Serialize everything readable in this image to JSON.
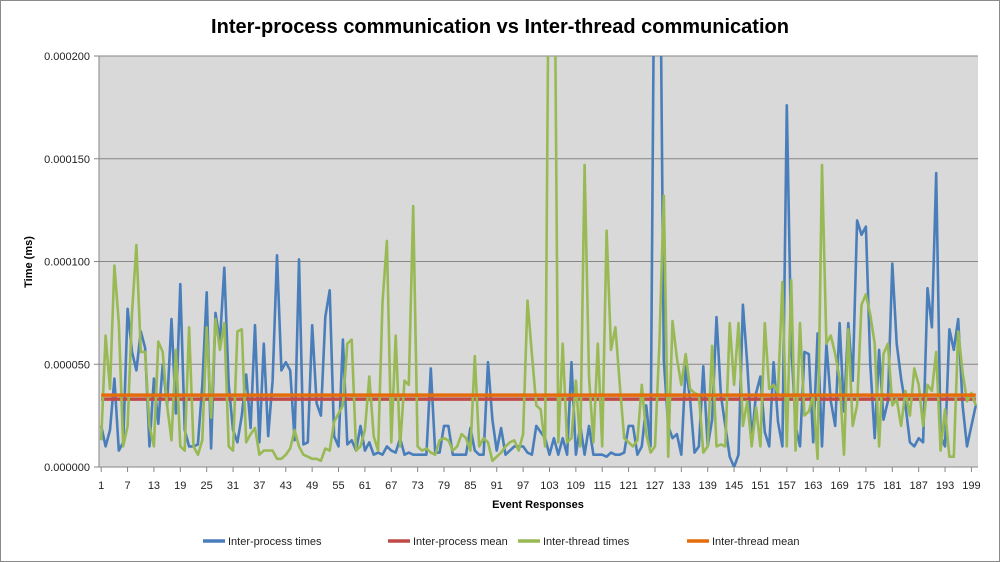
{
  "chart_data": {
    "type": "line",
    "title": "Inter-process communication vs Inter-thread communication",
    "xlabel": "Event Responses",
    "ylabel": "Time (ms)",
    "ylim": [
      0,
      0.0002
    ],
    "yticks": [
      "0.000000",
      "0.000050",
      "0.000100",
      "0.000150",
      "0.000200"
    ],
    "ytick_values": [
      0,
      5e-05,
      0.0001,
      0.00015,
      0.0002
    ],
    "xticks": [
      "1",
      "7",
      "13",
      "19",
      "25",
      "31",
      "37",
      "43",
      "49",
      "55",
      "61",
      "67",
      "73",
      "79",
      "85",
      "91",
      "97",
      "103",
      "109",
      "115",
      "121",
      "127",
      "133",
      "139",
      "145",
      "151",
      "157",
      "163",
      "169",
      "175",
      "181",
      "187",
      "193",
      "199"
    ],
    "x_count": 200,
    "grid": true,
    "legend_position": "bottom",
    "series": [
      {
        "name": "Inter-process times",
        "color": "#4a7ebb",
        "values": [
          2e-05,
          1e-05,
          1.8e-05,
          4.3e-05,
          8e-06,
          1.2e-05,
          7.7e-05,
          5.6e-05,
          4.7e-05,
          6.6e-05,
          5.8e-05,
          1e-05,
          4.3e-05,
          2.1e-05,
          5e-05,
          3e-05,
          7.2e-05,
          2.6e-05,
          8.9e-05,
          1.8e-05,
          1e-05,
          1e-05,
          1.1e-05,
          4e-05,
          8.5e-05,
          9e-06,
          7.5e-05,
          6.1e-05,
          9.7e-05,
          4e-05,
          1.8e-05,
          1.2e-05,
          2.5e-05,
          4.5e-05,
          1.9e-05,
          6.9e-05,
          1.2e-05,
          6e-05,
          1.5e-05,
          4.2e-05,
          0.000103,
          4.7e-05,
          5.1e-05,
          4.7e-05,
          1.3e-05,
          0.000101,
          1.1e-05,
          1.2e-05,
          6.9e-05,
          3.1e-05,
          2.5e-05,
          7.3e-05,
          8.6e-05,
          1.5e-05,
          1e-05,
          6.2e-05,
          1.1e-05,
          1.3e-05,
          8e-06,
          2e-05,
          8e-06,
          1.2e-05,
          6e-06,
          7e-06,
          6e-06,
          1e-05,
          8e-06,
          7e-06,
          1.4e-05,
          6e-06,
          7e-06,
          6e-06,
          6e-06,
          6e-06,
          6e-06,
          4.8e-05,
          7e-06,
          7e-06,
          2e-05,
          2e-05,
          6e-06,
          6e-06,
          6e-06,
          6e-06,
          1.9e-05,
          8e-06,
          6e-06,
          6e-06,
          5.1e-05,
          2.3e-05,
          8e-06,
          1.9e-05,
          6e-06,
          8e-06,
          1e-05,
          1e-05,
          1e-05,
          7e-06,
          6e-06,
          2e-05,
          1.7e-05,
          1.4e-05,
          6e-06,
          1.4e-05,
          6e-06,
          1.4e-05,
          6e-06,
          5.1e-05,
          6e-06,
          2e-05,
          6e-06,
          2e-05,
          6e-06,
          6e-06,
          6e-06,
          5e-06,
          7e-06,
          6e-06,
          6e-06,
          7e-06,
          2e-05,
          2e-05,
          6e-06,
          1e-05,
          3e-05,
          1e-05,
          0.0003,
          0.0003,
          5.2e-05,
          2e-05,
          1.4e-05,
          1.6e-05,
          6e-06,
          4.9e-05,
          3.3e-05,
          7e-06,
          1e-05,
          4.9e-05,
          1e-05,
          2.3e-05,
          7.3e-05,
          3.5e-05,
          2e-05,
          5e-06,
          0,
          6e-06,
          7.9e-05,
          5e-05,
          1.3e-05,
          3.6e-05,
          4.4e-05,
          1.7e-05,
          1e-05,
          5.1e-05,
          2.2e-05,
          1e-05,
          0.000176,
          6e-05,
          2e-05,
          1e-05,
          5.6e-05,
          5.5e-05,
          1.2e-05,
          6.5e-05,
          1e-05,
          6e-05,
          3.2e-05,
          2e-05,
          7e-05,
          2.7e-05,
          7e-05,
          4.2e-05,
          0.00012,
          0.000113,
          0.000117,
          5e-05,
          1.4e-05,
          5.7e-05,
          2.3e-05,
          3.2e-05,
          9.9e-05,
          6e-05,
          4.3e-05,
          3e-05,
          1.2e-05,
          1e-05,
          1.4e-05,
          1.2e-05,
          8.7e-05,
          6.8e-05,
          0.000143,
          1.5e-05,
          1e-05,
          6.7e-05,
          5.7e-05,
          7.2e-05,
          3e-05,
          1e-05,
          2e-05,
          3e-05
        ]
      },
      {
        "name": "Inter-process mean",
        "color": "#be4b48",
        "constant": 3.3e-05
      },
      {
        "name": "Inter-thread times",
        "color": "#98b954",
        "values": [
          1.3e-05,
          6.4e-05,
          3.8e-05,
          9.8e-05,
          7e-05,
          1e-05,
          2e-05,
          7.5e-05,
          0.000108,
          5.6e-05,
          5.6e-05,
          2e-05,
          1e-05,
          6.1e-05,
          5.6e-05,
          3e-05,
          1.3e-05,
          5.7e-05,
          1e-05,
          8e-06,
          6.8e-05,
          1e-05,
          6e-06,
          1.3e-05,
          6.8e-05,
          2.4e-05,
          7.2e-05,
          5.7e-05,
          7e-05,
          1e-05,
          8e-06,
          6.6e-05,
          6.7e-05,
          1.2e-05,
          1.6e-05,
          1.9e-05,
          6e-06,
          8e-06,
          8e-06,
          8e-06,
          4e-06,
          4e-06,
          6e-06,
          9e-06,
          1.8e-05,
          1e-05,
          6e-06,
          5e-06,
          4e-06,
          4e-06,
          3e-06,
          9e-06,
          8e-06,
          2.2e-05,
          2.6e-05,
          3e-05,
          6e-05,
          6.2e-05,
          8e-06,
          1e-05,
          1.8e-05,
          4.4e-05,
          1.5e-05,
          8e-06,
          8e-05,
          0.00011,
          1.2e-05,
          6.4e-05,
          1e-05,
          4.2e-05,
          4e-05,
          0.000127,
          1e-05,
          8e-06,
          9e-06,
          7e-06,
          6e-06,
          1.3e-05,
          1.4e-05,
          1.3e-05,
          8e-06,
          1e-05,
          1.6e-05,
          1.4e-05,
          8e-06,
          5.4e-05,
          1e-05,
          1.4e-05,
          1.2e-05,
          3e-06,
          5e-06,
          7e-06,
          1e-05,
          1.2e-05,
          1.3e-05,
          8e-06,
          1.6e-05,
          8.1e-05,
          5.5e-05,
          3e-05,
          2.8e-05,
          1e-05,
          0.0003,
          0.0003,
          1.2e-05,
          6e-05,
          1.2e-05,
          1.4e-05,
          4.2e-05,
          1e-05,
          0.000147,
          4.4e-05,
          1.2e-05,
          6e-05,
          1e-05,
          0.000115,
          5.7e-05,
          6.8e-05,
          4e-05,
          1.4e-05,
          1.2e-05,
          1e-05,
          1.3e-05,
          4e-05,
          1.6e-05,
          7e-06,
          1e-05,
          6e-05,
          0.000132,
          5e-06,
          7.1e-05,
          5.3e-05,
          4e-05,
          5.5e-05,
          3.8e-05,
          3.6e-05,
          3.5e-05,
          7e-06,
          1e-05,
          5.9e-05,
          1e-05,
          1.1e-05,
          1e-05,
          7e-05,
          4e-05,
          7e-05,
          2e-05,
          3.2e-05,
          1e-05,
          2.9e-05,
          1e-05,
          7e-05,
          3.8e-05,
          4e-05,
          3.6e-05,
          9e-05,
          1e-05,
          9.1e-05,
          8e-06,
          7e-05,
          2.5e-05,
          2.7e-05,
          3.5e-05,
          4e-06,
          0.000147,
          6e-05,
          6.4e-05,
          5.5e-05,
          4.3e-05,
          6e-06,
          6.7e-05,
          2e-05,
          3e-05,
          7.9e-05,
          8.4e-05,
          7.4e-05,
          6e-05,
          1e-05,
          5.5e-05,
          6e-05,
          3e-05,
          3.3e-05,
          2e-05,
          3.7e-05,
          2.5e-05,
          4.8e-05,
          4e-05,
          2e-05,
          4e-05,
          3.7e-05,
          5.6e-05,
          8e-06,
          2.8e-05,
          5e-06,
          5e-06,
          6.6e-05,
          4.6e-05,
          3.2e-05,
          3.6e-05,
          3e-05
        ]
      },
      {
        "name": "Inter-thread mean",
        "color": "#e46c0a",
        "constant": 3.5e-05
      }
    ]
  }
}
